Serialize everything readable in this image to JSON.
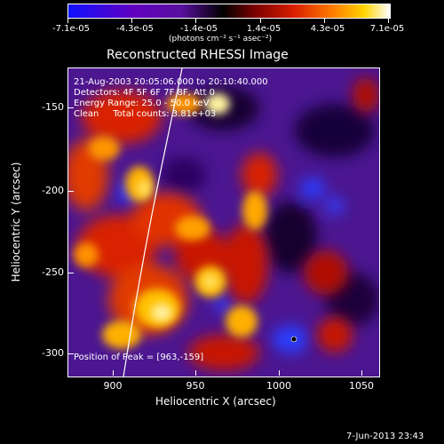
{
  "colorbar": {
    "tick_labels": [
      "-7.1e-05",
      "-4.3e-05",
      "-1.4e-05",
      "1.4e-05",
      "4.3e-05",
      "7.1e-05"
    ],
    "units": "(photons cm⁻² s⁻¹ asec⁻²)",
    "colors": [
      "#1010ff",
      "#6000c0",
      "#000000",
      "#d81d00",
      "#ff7a00",
      "#ffd400",
      "#ffffff"
    ]
  },
  "plot": {
    "title": "Reconstructed RHESSI Image",
    "info_lines": [
      "21-Aug-2003 20:05:06.000 to 20:10:40.000",
      "Detectors: 4F 5F 6F 7F 8F, Att 0",
      "Energy Range: 25.0 - 50.0 keV",
      "Clean     Total counts: 3.81e+03"
    ],
    "peak_label": "Position of Peak = [963,-159]",
    "ylabel": "Heliocentric Y (arcsec)",
    "xlabel": "Heliocentric X (arcsec)",
    "y_ticks": [
      "-150",
      "-200",
      "-250",
      "-300"
    ],
    "x_ticks": [
      "900",
      "950",
      "1000",
      "1050"
    ],
    "xlim": [
      870,
      1060
    ],
    "ylim": [
      -320,
      -130
    ]
  },
  "footer": {
    "timestamp": "7-Jun-2013 23:43"
  }
}
